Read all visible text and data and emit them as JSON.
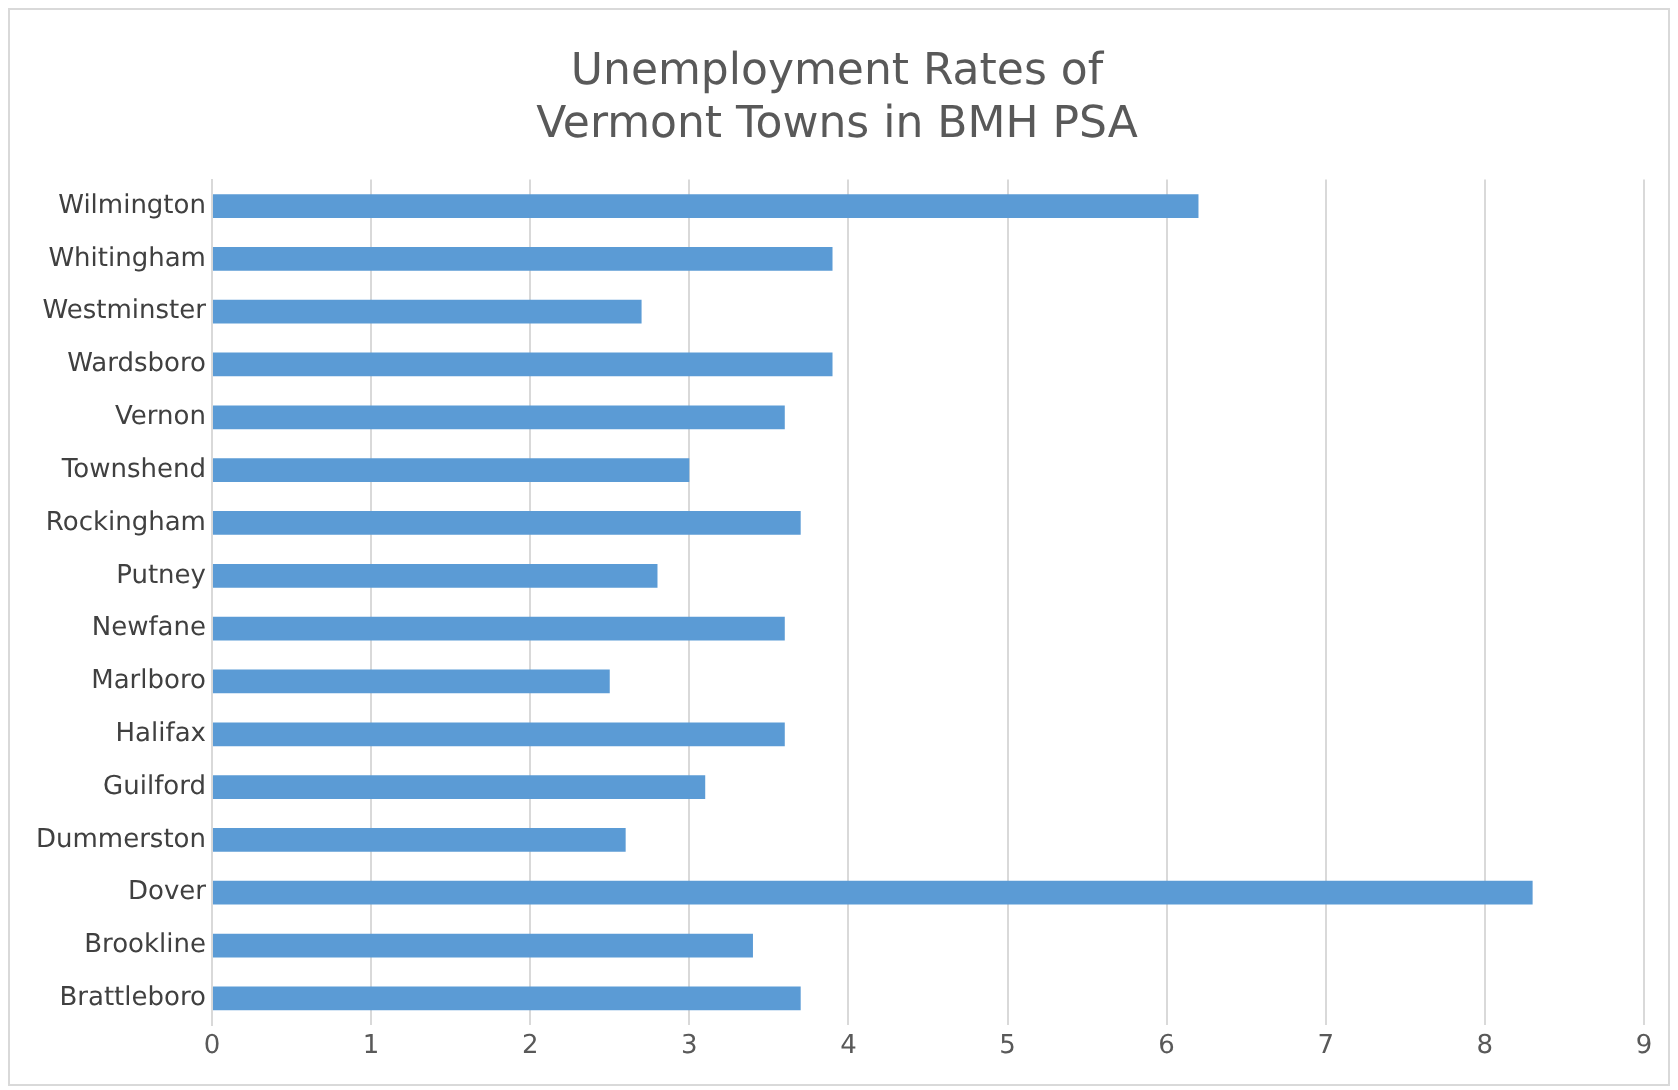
{
  "chart_data": {
    "type": "bar",
    "orientation": "horizontal",
    "title": "Unemployment Rates of\nVermont Towns in BMH PSA",
    "categories": [
      "Wilmington",
      "Whitingham",
      "Westminster",
      "Wardsboro",
      "Vernon",
      "Townshend",
      "Rockingham",
      "Putney",
      "Newfane",
      "Marlboro",
      "Halifax",
      "Guilford",
      "Dummerston",
      "Dover",
      "Brookline",
      "Brattleboro"
    ],
    "values": [
      6.2,
      3.9,
      2.7,
      3.9,
      3.6,
      3.0,
      3.7,
      2.8,
      3.6,
      2.5,
      3.6,
      3.1,
      2.6,
      8.3,
      3.4,
      3.7
    ],
    "color": "#5b9bd5",
    "xlim": [
      0,
      9
    ],
    "xticks": [
      0,
      1,
      2,
      3,
      4,
      5,
      6,
      7,
      8,
      9
    ],
    "grid": "x",
    "legend": false
  }
}
